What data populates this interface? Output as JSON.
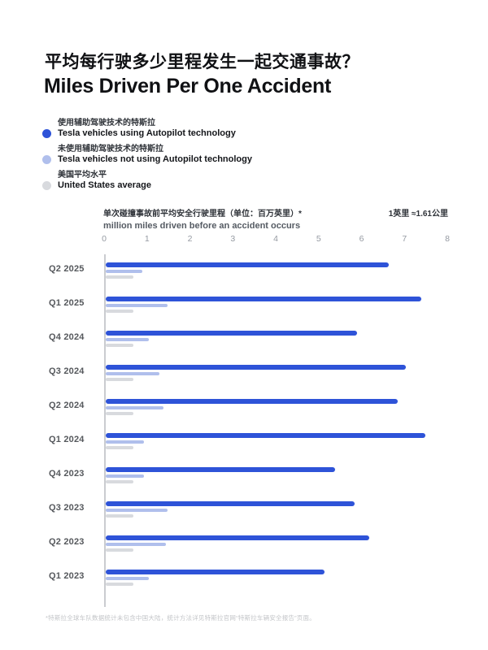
{
  "page": {
    "title_zh": "平均每行驶多少里程发生一起交通事故？",
    "title_en": "Miles Driven Per One Accident",
    "footnote": "*特斯拉全球车队数据统计未包含中国大陆，统计方法详见特斯拉官网“特斯拉车辆安全报告”页面。"
  },
  "legend": {
    "items": [
      {
        "key": "autopilot",
        "label_zh": "使用辅助驾驶技术的特斯拉",
        "label_en": "Tesla vehicles using Autopilot technology",
        "color": "#2e53d8"
      },
      {
        "key": "no_autopilot",
        "label_zh": "未使用辅助驾驶技术的特斯拉",
        "label_en": "Tesla vehicles not using Autopilot technology",
        "color": "#b0bfec"
      },
      {
        "key": "us_average",
        "label_zh": "美国平均水平",
        "label_en": "United States average",
        "color": "#d8dade"
      }
    ]
  },
  "axis": {
    "label_zh": "单次碰撞事故前平均安全行驶里程（单位：百万英里）*",
    "label_en": "million miles driven before an accident occurs",
    "unit_note": "1英里 ≈1.61公里",
    "ticks": [
      "0",
      "1",
      "2",
      "3",
      "4",
      "5",
      "6",
      "7",
      "8"
    ]
  },
  "colors": {
    "autopilot_bar": "#2e53d8",
    "no_autopilot_bar": "#b0bfec",
    "us_average_bar": "#d8dade",
    "axis_line": "#caccd0",
    "background": "#ffffff"
  },
  "chart_data": {
    "type": "bar",
    "orientation": "horizontal",
    "title": "Miles Driven Per One Accident",
    "xlabel": "million miles driven before an accident occurs",
    "ylabel": "",
    "xlim": [
      0,
      8
    ],
    "grid": false,
    "legend_position": "top-left",
    "categories": [
      "Q2 2025",
      "Q1 2025",
      "Q4 2024",
      "Q3 2024",
      "Q2 2024",
      "Q1 2024",
      "Q4 2023",
      "Q3 2023",
      "Q2 2023",
      "Q1 2023"
    ],
    "series": [
      {
        "name": "Tesla vehicles using Autopilot technology",
        "key": "autopilot",
        "color": "#2e53d8",
        "values": [
          6.6,
          7.35,
          5.85,
          7.0,
          6.8,
          7.45,
          5.35,
          5.8,
          6.15,
          5.1
        ]
      },
      {
        "name": "Tesla vehicles not using Autopilot technology",
        "key": "no_autopilot",
        "color": "#b0bfec",
        "values": [
          0.85,
          1.45,
          1.0,
          1.25,
          1.35,
          0.9,
          0.9,
          1.45,
          1.4,
          1.0
        ]
      },
      {
        "name": "United States average",
        "key": "us_average",
        "color": "#d8dade",
        "values": [
          0.65,
          0.65,
          0.65,
          0.65,
          0.65,
          0.65,
          0.65,
          0.65,
          0.65,
          0.65
        ]
      }
    ]
  }
}
